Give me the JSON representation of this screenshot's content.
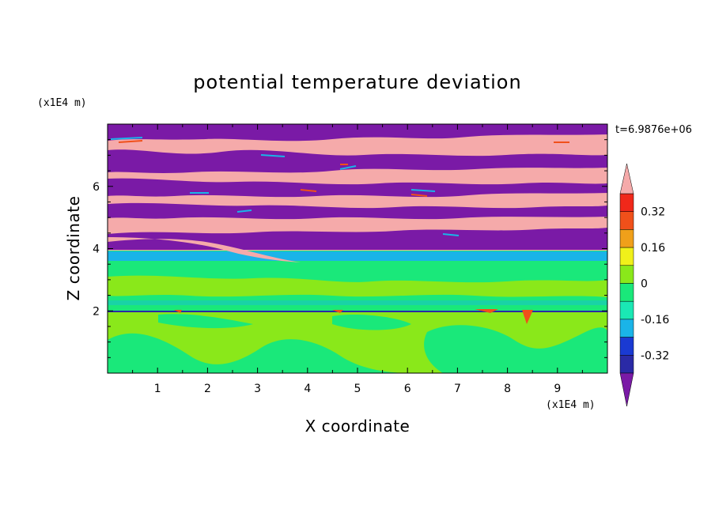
{
  "chart_data": {
    "type": "heatmap",
    "title": "potential temperature deviation",
    "xlabel": "X coordinate",
    "ylabel": "Z coordinate",
    "x_unit": "(x1E4 m)",
    "y_unit": "(x1E4 m)",
    "time_label": "t=6.9876e+06",
    "xlim": [
      0,
      10
    ],
    "ylim": [
      0,
      8
    ],
    "x_ticks": [
      "1",
      "2",
      "3",
      "4",
      "5",
      "6",
      "7",
      "8",
      "9"
    ],
    "y_ticks": [
      "2",
      "4",
      "6"
    ],
    "colorbar": {
      "tick_labels": [
        "0.32",
        "0.16",
        "0",
        "-0.16",
        "-0.32"
      ],
      "tick_values": [
        0.32,
        0.16,
        0,
        -0.16,
        -0.32
      ],
      "levels": [
        -0.4,
        -0.32,
        -0.24,
        -0.16,
        -0.08,
        0,
        0.08,
        0.16,
        0.24,
        0.32,
        0.4
      ],
      "colors": [
        "#7a1aa6",
        "#2a2aa6",
        "#1a3ad2",
        "#1ab4e8",
        "#1ae8b4",
        "#1ae87a",
        "#8ae81a",
        "#f0f01a",
        "#f0a01a",
        "#f0501a",
        "#f0281a",
        "#f5aaaa"
      ]
    },
    "regions": [
      {
        "label": "alternating warm (pink) and cold (purple) layers",
        "z_range": [
          4,
          8
        ],
        "values": [
          0.4,
          -0.4
        ]
      },
      {
        "label": "near-neutral mixed layer",
        "z_range": [
          2,
          4
        ],
        "value": 0.0
      },
      {
        "label": "lower layer",
        "z_range": [
          0,
          2
        ],
        "values": [
          0.0,
          0.08
        ]
      }
    ]
  }
}
